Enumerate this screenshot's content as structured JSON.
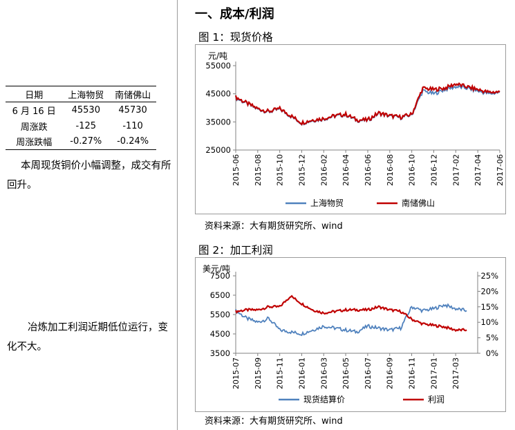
{
  "table": {
    "headers": [
      "日期",
      "上海物贸",
      "南储佛山"
    ],
    "rows": [
      [
        "6 月 16 日",
        "45530",
        "45730"
      ],
      [
        "周涨跌",
        "-125",
        "-110"
      ],
      [
        "周涨跌幅",
        "-0.27%",
        "-0.24%"
      ]
    ]
  },
  "text": {
    "para1": "本周现货铜价小幅调整，成交有所回升。",
    "para2": "冶炼加工利润近期低位运行，变化不大。",
    "section_title": "一、成本/利润",
    "fig1_title": "图 1：现货价格",
    "fig2_title": "图 2：加工利润",
    "source1": "资料来源：大有期货研究所、wind",
    "source2": "资料来源：大有期货研究所、wind"
  },
  "colors": {
    "blue": "#4f81bd",
    "red": "#c00000",
    "axis": "#808080"
  },
  "chart_data": [
    {
      "type": "line",
      "ylabel": "元/吨",
      "ylim": [
        25000,
        55000
      ],
      "yticks": [
        25000,
        35000,
        45000,
        55000
      ],
      "xticks": [
        "2015-06",
        "2015-08",
        "2015-10",
        "2015-12",
        "2016-02",
        "2016-04",
        "2016-06",
        "2016-08",
        "2016-10",
        "2016-12",
        "2017-02",
        "2017-04",
        "2017-06"
      ],
      "legend_position": "bottom",
      "series": [
        {
          "name": "上海物贸",
          "color": "#4f81bd",
          "x": [
            "2015-06",
            "2015-07",
            "2015-08",
            "2015-09",
            "2015-10",
            "2015-11",
            "2015-12",
            "2016-01",
            "2016-02",
            "2016-03",
            "2016-04",
            "2016-05",
            "2016-06",
            "2016-07",
            "2016-08",
            "2016-09",
            "2016-10",
            "2016-11",
            "2016-12",
            "2017-01",
            "2017-02",
            "2017-03",
            "2017-04",
            "2017-05",
            "2017-06"
          ],
          "values": [
            43500,
            41500,
            39500,
            38500,
            39500,
            37000,
            34500,
            35500,
            36000,
            37000,
            37500,
            35500,
            35500,
            38000,
            37000,
            36500,
            37500,
            46000,
            45000,
            46500,
            47500,
            47000,
            46000,
            45000,
            45500
          ]
        },
        {
          "name": "南储佛山",
          "color": "#c00000",
          "x": [
            "2015-06",
            "2015-07",
            "2015-08",
            "2015-09",
            "2015-10",
            "2015-11",
            "2015-12",
            "2016-01",
            "2016-02",
            "2016-03",
            "2016-04",
            "2016-05",
            "2016-06",
            "2016-07",
            "2016-08",
            "2016-09",
            "2016-10",
            "2016-11",
            "2016-12",
            "2017-01",
            "2017-02",
            "2017-03",
            "2017-04",
            "2017-05",
            "2017-06"
          ],
          "values": [
            43800,
            41700,
            39700,
            38700,
            39700,
            37200,
            34700,
            35700,
            36200,
            37200,
            37700,
            35700,
            35700,
            38200,
            37200,
            36700,
            37700,
            47000,
            46500,
            47000,
            48500,
            47500,
            46500,
            45500,
            45700
          ]
        }
      ]
    },
    {
      "type": "line",
      "ylabel": "美元/吨",
      "ylim": [
        3500,
        7500
      ],
      "yticks": [
        3500,
        4500,
        5500,
        6500,
        7500
      ],
      "y2lim": [
        0,
        25
      ],
      "y2ticks": [
        "0%",
        "5%",
        "10%",
        "15%",
        "20%",
        "25%"
      ],
      "xticks": [
        "2015-07",
        "2015-09",
        "2015-11",
        "2016-01",
        "2016-03",
        "2016-05",
        "2016-07",
        "2016-09",
        "2016-11",
        "2017-01",
        "2017-03"
      ],
      "legend_position": "bottom",
      "series": [
        {
          "name": "现货结算价",
          "axis": "left",
          "color": "#4f81bd",
          "x": [
            "2015-07",
            "2015-08",
            "2015-09",
            "2015-10",
            "2015-11",
            "2015-12",
            "2016-01",
            "2016-02",
            "2016-03",
            "2016-04",
            "2016-05",
            "2016-06",
            "2016-07",
            "2016-08",
            "2016-09",
            "2016-10",
            "2016-11",
            "2016-12",
            "2017-01",
            "2017-02",
            "2017-03",
            "2017-04"
          ],
          "values": [
            5700,
            5300,
            5100,
            5300,
            4700,
            4600,
            4500,
            4700,
            4900,
            4800,
            4700,
            4600,
            4900,
            4800,
            4700,
            4800,
            5900,
            5700,
            5800,
            6000,
            5800,
            5700
          ]
        },
        {
          "name": "利润",
          "axis": "right",
          "color": "#c00000",
          "x": [
            "2015-07",
            "2015-08",
            "2015-09",
            "2015-10",
            "2015-11",
            "2015-12",
            "2016-01",
            "2016-02",
            "2016-03",
            "2016-04",
            "2016-05",
            "2016-06",
            "2016-07",
            "2016-08",
            "2016-09",
            "2016-10",
            "2016-11",
            "2016-12",
            "2017-01",
            "2017-02",
            "2017-03",
            "2017-04"
          ],
          "values": [
            13.5,
            14,
            14,
            15,
            15,
            18.5,
            16,
            14,
            13,
            13.5,
            14,
            14,
            14,
            15,
            14,
            13.5,
            11,
            9.5,
            9,
            8.5,
            7.5,
            7.5
          ]
        }
      ]
    }
  ]
}
